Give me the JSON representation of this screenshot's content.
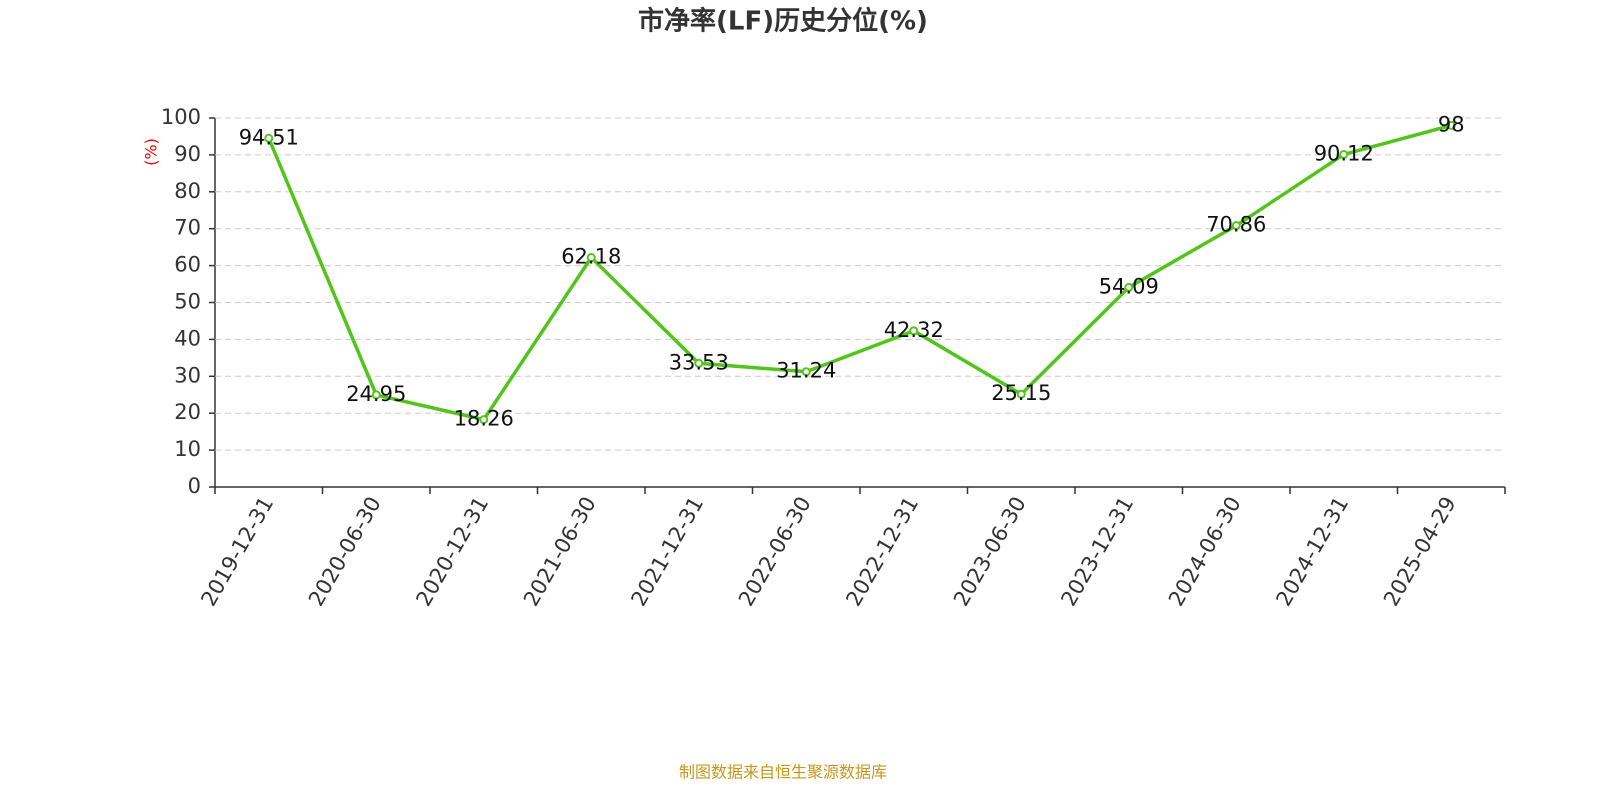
{
  "chart_data": {
    "type": "line",
    "title": "市净率(LF)历史分位(%)",
    "y_label": "(%)",
    "source": "制图数据来自恒生聚源数据库",
    "categories": [
      "2019-12-31",
      "2020-06-30",
      "2020-12-31",
      "2021-06-30",
      "2021-12-31",
      "2022-06-30",
      "2022-12-31",
      "2023-06-30",
      "2023-12-31",
      "2024-06-30",
      "2024-12-31",
      "2025-04-29"
    ],
    "values": [
      94.51,
      24.95,
      18.26,
      62.18,
      33.53,
      31.24,
      42.32,
      25.15,
      54.09,
      70.86,
      90.12,
      98
    ],
    "color": "#52c41a",
    "ylim": [
      0,
      100
    ],
    "yticks": [
      0,
      10,
      20,
      30,
      40,
      50,
      60,
      70,
      80,
      90,
      100
    ],
    "grid": true
  }
}
